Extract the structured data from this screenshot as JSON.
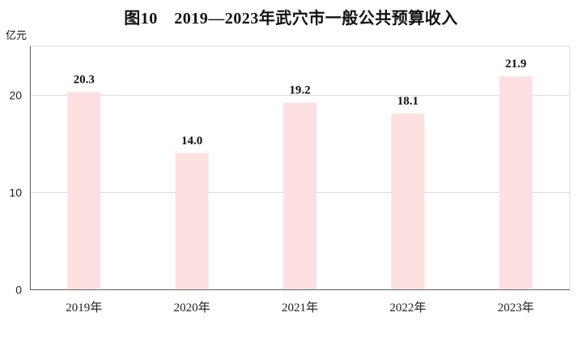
{
  "chart_data": {
    "type": "bar",
    "title": "图10　2019—2023年武穴市一般公共预算收入",
    "ylabel": "亿元",
    "xlabel": "",
    "categories": [
      "2019年",
      "2020年",
      "2021年",
      "2022年",
      "2023年"
    ],
    "values": [
      20.3,
      14.0,
      19.2,
      18.1,
      21.9
    ],
    "data_labels": [
      "20.3",
      "14.0",
      "19.2",
      "18.1",
      "21.9"
    ],
    "yticks": [
      0,
      10,
      20
    ],
    "ylim": [
      0,
      25
    ],
    "grid": true,
    "legend": "none",
    "colors": {
      "bar": "#fde0e0",
      "grid": "#d9d9d9",
      "axis": "#666666"
    }
  }
}
